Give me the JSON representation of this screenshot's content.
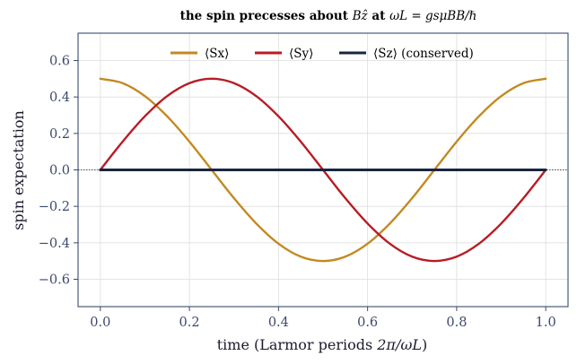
{
  "chart_data": {
    "type": "line",
    "title_prefix": "the spin precesses about ",
    "title_field": "Bẑ",
    "title_mid": " at ",
    "title_freq": "ωL = gsμBB/ℏ",
    "xlabel_text": "time (Larmor periods ",
    "xlabel_math": "2π/ωL",
    "xlabel_close": ")",
    "ylabel": "spin expectation",
    "xlim": [
      -0.05,
      1.05
    ],
    "ylim": [
      -0.75,
      0.75
    ],
    "x_ticks": [
      0.0,
      0.2,
      0.4,
      0.6,
      0.8,
      1.0
    ],
    "x_tick_labels": [
      "0.0",
      "0.2",
      "0.4",
      "0.6",
      "0.8",
      "1.0"
    ],
    "y_ticks": [
      0.6,
      0.4,
      0.2,
      0.0,
      -0.2,
      -0.4,
      -0.6
    ],
    "y_tick_labels": [
      "0.6",
      "0.4",
      "0.2",
      "0.0",
      "−0.2",
      "−0.4",
      "−0.6"
    ],
    "grid": true,
    "legend_position": "top-center",
    "series": [
      {
        "name": "⟨Sx⟩",
        "color": "#c28a22",
        "x": [
          0.0,
          0.05,
          0.1,
          0.15,
          0.2,
          0.25,
          0.3,
          0.35,
          0.4,
          0.45,
          0.5,
          0.55,
          0.6,
          0.65,
          0.7,
          0.75,
          0.8,
          0.85,
          0.9,
          0.95,
          1.0
        ],
        "y": [
          0.5,
          0.476,
          0.405,
          0.294,
          0.155,
          0.0,
          -0.155,
          -0.294,
          -0.405,
          -0.476,
          -0.5,
          -0.476,
          -0.405,
          -0.294,
          -0.155,
          0.0,
          0.155,
          0.294,
          0.405,
          0.476,
          0.5
        ]
      },
      {
        "name": "⟨Sy⟩",
        "color": "#b81c25",
        "x": [
          0.0,
          0.05,
          0.1,
          0.15,
          0.2,
          0.25,
          0.3,
          0.35,
          0.4,
          0.45,
          0.5,
          0.55,
          0.6,
          0.65,
          0.7,
          0.75,
          0.8,
          0.85,
          0.9,
          0.95,
          1.0
        ],
        "y": [
          0.0,
          0.155,
          0.294,
          0.405,
          0.476,
          0.5,
          0.476,
          0.405,
          0.294,
          0.155,
          0.0,
          -0.155,
          -0.294,
          -0.405,
          -0.476,
          -0.5,
          -0.476,
          -0.405,
          -0.294,
          -0.155,
          0.0
        ]
      },
      {
        "name": "⟨Sz⟩ (conserved)",
        "color": "#1b2540",
        "x": [
          0.0,
          1.0
        ],
        "y": [
          0.0,
          0.0
        ]
      }
    ]
  }
}
